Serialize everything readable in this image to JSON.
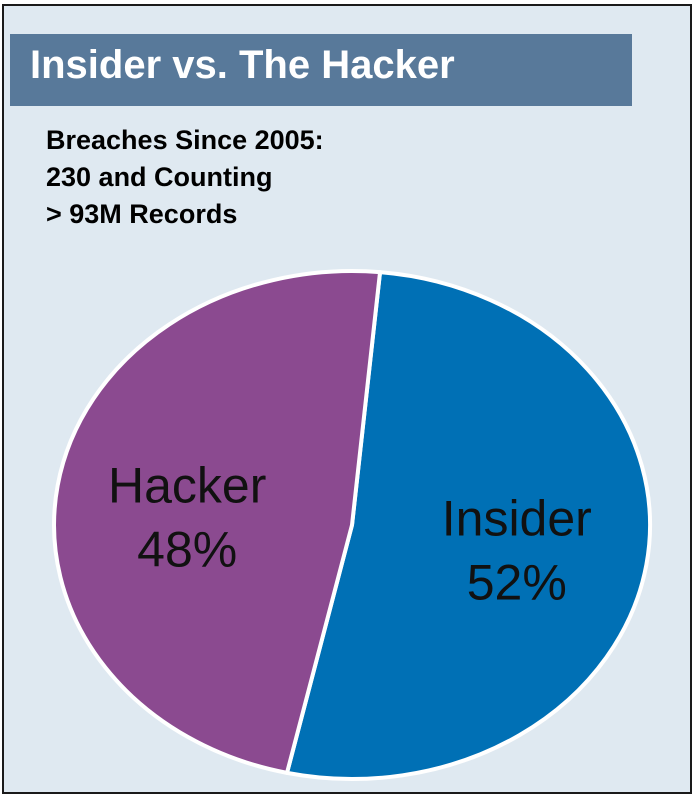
{
  "chart_data": {
    "type": "pie",
    "title": "Insider vs. The Hacker",
    "subtitle_lines": [
      "Breaches Since 2005:",
      "230 and Counting",
      "> 93M Records"
    ],
    "slices": [
      {
        "label": "Insider",
        "value": 52,
        "value_text": "52%",
        "color": "#0070b5"
      },
      {
        "label": "Hacker",
        "value": 48,
        "value_text": "48%",
        "color": "#8b4a90"
      }
    ]
  }
}
